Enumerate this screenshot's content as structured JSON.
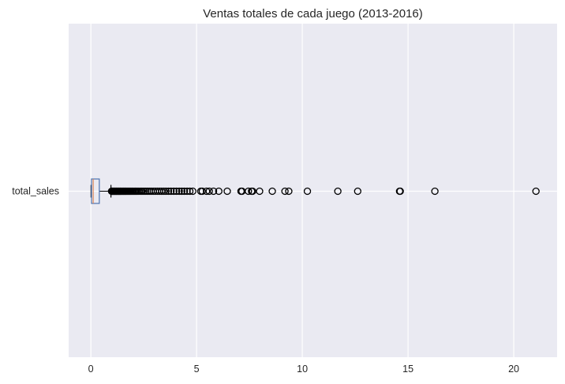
{
  "chart_data": {
    "type": "boxplot",
    "orientation": "horizontal",
    "title": "Ventas totales de cada juego (2013-2016)",
    "xlabel": "",
    "ylabel": "",
    "xlim": [
      -1.05,
      22.05
    ],
    "xticks": [
      0,
      5,
      10,
      15,
      20
    ],
    "xtick_labels": [
      "0",
      "5",
      "10",
      "15",
      "20"
    ],
    "grid": true,
    "series": [
      {
        "name": "total_sales",
        "whisker_low": 0.01,
        "q1": 0.03,
        "median": 0.11,
        "q3": 0.4,
        "whisker_high": 0.95,
        "outliers": [
          0.98,
          1.0,
          1.02,
          1.05,
          1.08,
          1.1,
          1.12,
          1.15,
          1.18,
          1.2,
          1.22,
          1.25,
          1.28,
          1.3,
          1.33,
          1.35,
          1.38,
          1.4,
          1.43,
          1.46,
          1.5,
          1.53,
          1.56,
          1.6,
          1.63,
          1.66,
          1.7,
          1.74,
          1.78,
          1.82,
          1.86,
          1.9,
          1.95,
          2.0,
          2.05,
          2.1,
          2.15,
          2.2,
          2.27,
          2.35,
          2.42,
          2.5,
          2.58,
          2.67,
          2.76,
          2.85,
          2.95,
          3.05,
          3.15,
          3.25,
          3.35,
          3.45,
          3.55,
          3.67,
          3.79,
          3.92,
          4.05,
          4.18,
          4.3,
          4.42,
          4.55,
          4.68,
          4.82,
          5.2,
          5.27,
          5.47,
          5.6,
          5.8,
          6.05,
          6.45,
          7.1,
          7.15,
          7.45,
          7.6,
          7.65,
          7.98,
          8.58,
          9.18,
          9.36,
          10.24,
          11.68,
          12.62,
          14.6,
          14.63,
          16.27,
          21.05
        ]
      }
    ]
  }
}
